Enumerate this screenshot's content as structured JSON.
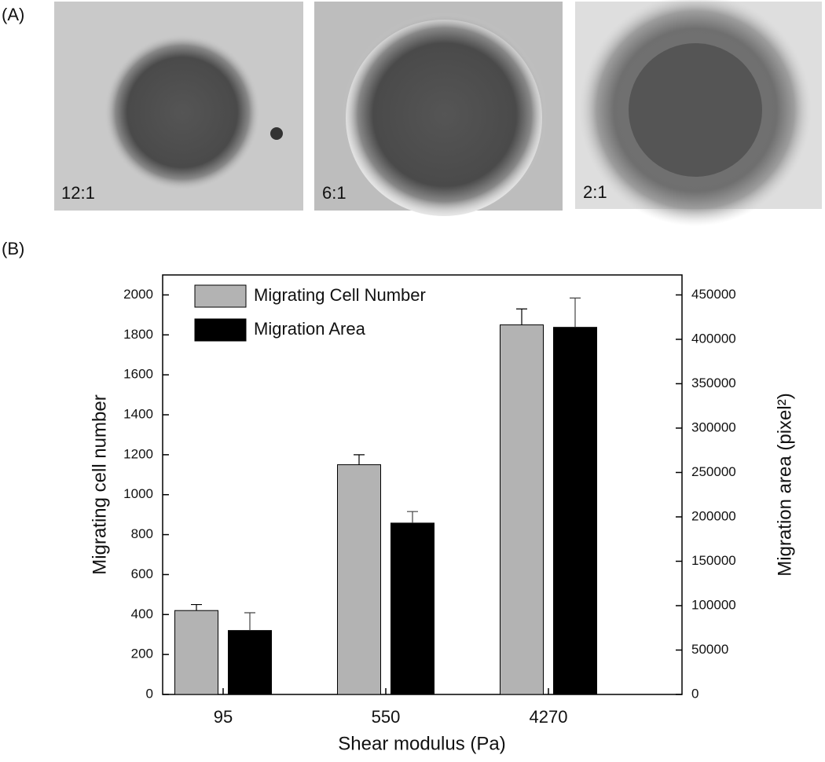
{
  "panel_a": {
    "label": "(A)",
    "images": [
      {
        "caption": "12:1"
      },
      {
        "caption": "6:1"
      },
      {
        "caption": "2:1"
      }
    ]
  },
  "panel_b_label": "(B)",
  "chart_data": {
    "type": "bar",
    "x_label": "Shear modulus (Pa)",
    "y_label": "Migrating cell number",
    "y2_label": "Migration area (pixel²)",
    "categories": [
      "95",
      "550",
      "4270"
    ],
    "series": [
      {
        "name": "Migrating Cell Number",
        "color": "#b3b3b3",
        "values": [
          420,
          1150,
          1850
        ],
        "errors": [
          30,
          50,
          80
        ]
      },
      {
        "name": "Migration Area",
        "color": "#000000",
        "axis": "y2",
        "values": [
          72000,
          193000,
          413500
        ],
        "errors": [
          20000,
          13000,
          33000
        ]
      }
    ],
    "ylim": [
      0,
      2100
    ],
    "yticks": [
      0,
      200,
      400,
      600,
      800,
      1000,
      1200,
      1400,
      1600,
      1800,
      2000
    ],
    "y2lim": [
      0,
      472500
    ],
    "y2ticks": [
      0,
      50000,
      100000,
      150000,
      200000,
      250000,
      300000,
      350000,
      400000,
      450000
    ],
    "legend": "top-left"
  }
}
